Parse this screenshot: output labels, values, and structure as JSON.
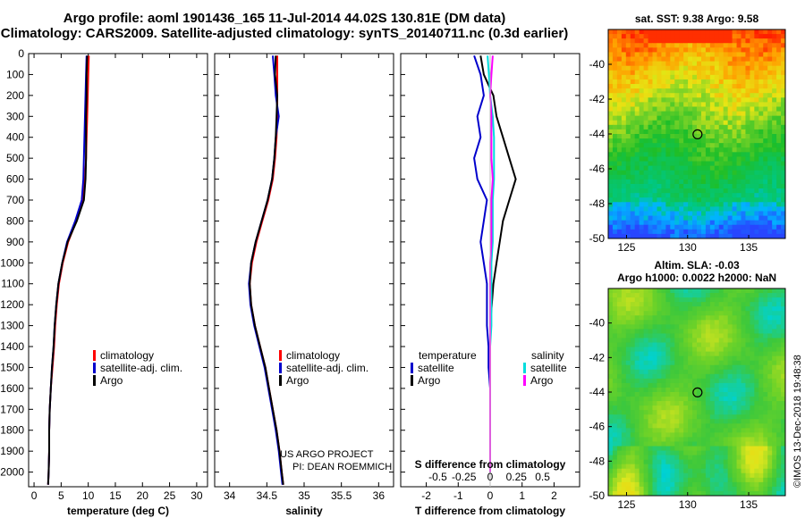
{
  "header": {
    "line1": "Argo profile: aoml 1901436_165 11-Jul-2014 44.02S 130.81E (DM data)",
    "line2": "Climatology: CARS2009. Satellite-adjusted climatology: synTS_20140711.nc (0.3d earlier)"
  },
  "colors": {
    "climatology": "#ff0000",
    "satellite": "#0000cc",
    "argo": "#000000",
    "salinity_satellite": "#00dddd",
    "salinity_argo": "#ff00ff"
  },
  "pressure_axis": {
    "ticks": [
      0,
      100,
      200,
      300,
      400,
      500,
      600,
      700,
      800,
      900,
      1000,
      1100,
      1200,
      1300,
      1400,
      1500,
      1600,
      1700,
      1800,
      1900,
      2000
    ],
    "range": [
      0,
      2070
    ]
  },
  "chart_data": [
    {
      "type": "line",
      "id": "temperature",
      "xlabel": "temperature (deg C)",
      "ylabel": "pressure",
      "xlim": [
        -1,
        32
      ],
      "ylim": [
        2070,
        0
      ],
      "xticks": [
        0,
        5,
        10,
        15,
        20,
        25,
        30
      ],
      "legend": {
        "placement": "lower-right",
        "entries": [
          "climatology",
          "satellite-adj. clim.",
          "Argo"
        ]
      },
      "series": [
        {
          "name": "climatology",
          "color": "#ff0000",
          "x": [
            10.1,
            10.0,
            9.9,
            9.8,
            9.7,
            9.6,
            9.4,
            9.0,
            7.8,
            6.3,
            5.3,
            4.6,
            4.2,
            3.9,
            3.7,
            3.4,
            3.1,
            2.9,
            2.8,
            2.8,
            2.7,
            2.6
          ],
          "y": [
            10,
            100,
            200,
            300,
            400,
            500,
            600,
            700,
            800,
            900,
            1000,
            1100,
            1200,
            1300,
            1400,
            1500,
            1600,
            1700,
            1800,
            1900,
            2000,
            2060
          ]
        },
        {
          "name": "satellite-adj. clim.",
          "color": "#0000cc",
          "x": [
            9.7,
            9.6,
            9.5,
            9.4,
            9.3,
            9.2,
            9.1,
            8.8,
            7.6,
            6.1,
            5.2,
            4.5,
            4.1,
            3.8,
            3.6,
            3.3,
            3.1,
            2.9,
            2.8,
            2.8,
            2.7,
            2.6
          ],
          "y": [
            10,
            100,
            200,
            300,
            400,
            500,
            600,
            700,
            800,
            900,
            1000,
            1100,
            1200,
            1300,
            1400,
            1500,
            1600,
            1700,
            1800,
            1900,
            2000,
            2060
          ]
        },
        {
          "name": "Argo",
          "color": "#000000",
          "x": [
            9.8,
            9.7,
            9.7,
            9.6,
            9.6,
            9.6,
            9.5,
            9.2,
            7.9,
            6.2,
            5.2,
            4.5,
            4.1,
            3.8,
            3.6,
            3.3,
            3.1,
            2.9,
            2.8,
            2.8,
            2.7,
            2.6
          ],
          "y": [
            10,
            100,
            200,
            300,
            400,
            500,
            600,
            700,
            800,
            900,
            1000,
            1100,
            1200,
            1300,
            1400,
            1500,
            1600,
            1700,
            1800,
            1900,
            2000,
            2060
          ]
        }
      ]
    },
    {
      "type": "line",
      "id": "salinity",
      "xlabel": "salinity",
      "xlim": [
        33.8,
        36.2
      ],
      "ylim": [
        2070,
        0
      ],
      "xticks": [
        34,
        34.5,
        35,
        35.5,
        36
      ],
      "legend": {
        "placement": "lower-right",
        "entries": [
          "climatology",
          "satellite-adj. clim.",
          "Argo"
        ]
      },
      "series": [
        {
          "name": "climatology",
          "color": "#ff0000",
          "x": [
            34.64,
            34.64,
            34.64,
            34.64,
            34.63,
            34.61,
            34.58,
            34.52,
            34.44,
            34.36,
            34.3,
            34.27,
            34.29,
            34.34,
            34.41,
            34.48,
            34.53,
            34.58,
            34.63,
            34.67,
            34.7,
            34.72
          ],
          "y": [
            10,
            100,
            200,
            300,
            400,
            500,
            600,
            700,
            800,
            900,
            1000,
            1100,
            1200,
            1300,
            1400,
            1500,
            1600,
            1700,
            1800,
            1900,
            2000,
            2060
          ]
        },
        {
          "name": "satellite-adj. clim.",
          "color": "#0000cc",
          "x": [
            34.58,
            34.6,
            34.62,
            34.66,
            34.62,
            34.6,
            34.57,
            34.51,
            34.43,
            34.35,
            34.29,
            34.26,
            34.28,
            34.33,
            34.4,
            34.47,
            34.52,
            34.57,
            34.62,
            34.66,
            34.69,
            34.71
          ],
          "y": [
            10,
            100,
            200,
            300,
            400,
            500,
            600,
            700,
            800,
            900,
            1000,
            1100,
            1200,
            1300,
            1400,
            1500,
            1600,
            1700,
            1800,
            1900,
            2000,
            2060
          ]
        },
        {
          "name": "Argo",
          "color": "#000000",
          "x": [
            34.62,
            34.61,
            34.64,
            34.63,
            34.62,
            34.6,
            34.57,
            34.51,
            34.43,
            34.35,
            34.29,
            34.27,
            34.29,
            34.34,
            34.41,
            34.48,
            34.53,
            34.58,
            34.63,
            34.67,
            34.7,
            34.72
          ],
          "y": [
            10,
            100,
            200,
            300,
            400,
            500,
            600,
            700,
            800,
            900,
            1000,
            1100,
            1200,
            1300,
            1400,
            1500,
            1600,
            1700,
            1800,
            1900,
            2000,
            2060
          ]
        }
      ],
      "annotations": [
        "US ARGO PROJECT",
        "PI: DEAN ROEMMICH"
      ]
    },
    {
      "type": "line",
      "id": "difference",
      "xlabel": "T difference from climatology",
      "x2label": "S difference from climatology",
      "xlim": [
        -2.8,
        2.8
      ],
      "ylim": [
        2070,
        0
      ],
      "xticks": [
        -2,
        -1,
        0,
        1,
        2
      ],
      "xticklabels": [
        "-2",
        "-1",
        "0",
        "1",
        "2"
      ],
      "x2ticks": [
        -0.5,
        -0.25,
        0,
        0.25,
        0.5
      ],
      "x2ticklabels": [
        "-0.5",
        "-0.25",
        "0",
        "0.25",
        "0.5"
      ],
      "x2lim": [
        -0.7,
        0.7
      ],
      "legend": {
        "placement": "lower",
        "group1": "temperature",
        "group2": "salinity",
        "entries": [
          "satellite",
          "Argo"
        ]
      },
      "series": [
        {
          "name": "temperature satellite",
          "color": "#0000cc",
          "axis": "T",
          "x": [
            -0.5,
            -0.3,
            -0.2,
            -0.4,
            -0.3,
            -0.5,
            -0.4,
            -0.1,
            -0.2,
            -0.3,
            -0.2,
            -0.1,
            -0.1,
            -0.1,
            -0.05,
            -0.05,
            0,
            0,
            0,
            0,
            0
          ],
          "y": [
            10,
            100,
            200,
            300,
            400,
            500,
            600,
            700,
            800,
            900,
            1000,
            1100,
            1200,
            1300,
            1400,
            1500,
            1600,
            1700,
            1800,
            1900,
            2000
          ]
        },
        {
          "name": "temperature Argo",
          "color": "#000000",
          "axis": "T",
          "x": [
            -0.3,
            -0.2,
            0.1,
            0.2,
            0.4,
            0.6,
            0.8,
            0.6,
            0.4,
            0.3,
            0.2,
            0.1,
            0.05,
            0,
            0,
            0,
            0,
            0,
            0,
            0,
            0
          ],
          "y": [
            10,
            100,
            200,
            300,
            400,
            500,
            600,
            700,
            800,
            900,
            1000,
            1100,
            1200,
            1300,
            1400,
            1500,
            1600,
            1700,
            1800,
            1900,
            2000
          ]
        },
        {
          "name": "salinity satellite",
          "color": "#00dddd",
          "axis": "S",
          "x": [
            -0.02,
            -0.01,
            0,
            0.02,
            0.03,
            0.03,
            0.03,
            0.02,
            0.02,
            0.02,
            0.01,
            0.01,
            0.01,
            0.01,
            0,
            0,
            0,
            0,
            0,
            0,
            0
          ],
          "y": [
            10,
            100,
            200,
            300,
            400,
            500,
            600,
            700,
            800,
            900,
            1000,
            1100,
            1200,
            1300,
            1400,
            1500,
            1600,
            1700,
            1800,
            1900,
            2000
          ]
        },
        {
          "name": "salinity Argo",
          "color": "#ff00ff",
          "axis": "S",
          "x": [
            0.02,
            0.01,
            0,
            0.01,
            0.01,
            0.01,
            0.02,
            0.01,
            0.01,
            0.01,
            0,
            0,
            0,
            0,
            0,
            0,
            0,
            0,
            0,
            0,
            0
          ],
          "y": [
            10,
            100,
            200,
            300,
            400,
            500,
            600,
            700,
            800,
            900,
            1000,
            1100,
            1200,
            1300,
            1400,
            1500,
            1600,
            1700,
            1800,
            1900,
            2000
          ]
        }
      ]
    },
    {
      "type": "heatmap",
      "id": "sst_map",
      "title": "sat. SST: 9.38 Argo: 9.58",
      "xlim": [
        123.5,
        138
      ],
      "ylim": [
        -50,
        -38
      ],
      "xticks": [
        125,
        130,
        135
      ],
      "yticks": [
        -40,
        -42,
        -44,
        -46,
        -48,
        -50
      ],
      "marker": {
        "lon": 130.81,
        "lat": -44.02
      }
    },
    {
      "type": "heatmap",
      "id": "sla_map",
      "title_line1": "Altim. SLA: -0.03",
      "title_line2": "Argo h1000: 0.0022 h2000: NaN",
      "xlim": [
        123.5,
        138
      ],
      "ylim": [
        -50,
        -38
      ],
      "xticks": [
        125,
        130,
        135
      ],
      "yticks": [
        -40,
        -42,
        -44,
        -46,
        -48,
        -50
      ],
      "marker": {
        "lon": 130.81,
        "lat": -44.02
      }
    }
  ],
  "credits": {
    "line1": "US ARGO PROJECT",
    "line2": "PI: DEAN ROEMMICH",
    "stamp": "©IMOS 13-Dec-2018 19:48:38"
  }
}
